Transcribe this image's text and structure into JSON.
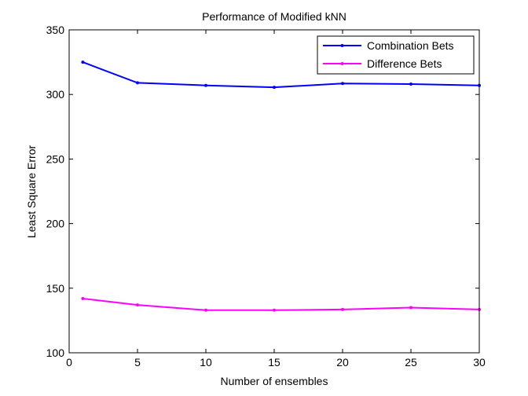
{
  "chart_data": {
    "type": "line",
    "title": "Performance of Modified kNN",
    "xlabel": "Number of ensembles",
    "ylabel": "Least Square Error",
    "xlim": [
      0,
      30
    ],
    "ylim": [
      100,
      350
    ],
    "xticks": [
      0,
      5,
      10,
      15,
      20,
      25,
      30
    ],
    "yticks": [
      100,
      150,
      200,
      250,
      300,
      350
    ],
    "grid": false,
    "legend_position": "top-right",
    "x": [
      1,
      5,
      10,
      15,
      20,
      25,
      30
    ],
    "series": [
      {
        "name": "Combination Bets",
        "color": "#0000ff",
        "marker": "point",
        "values": [
          325,
          309,
          307,
          305.5,
          308.5,
          308,
          307
        ]
      },
      {
        "name": "Difference Bets",
        "color": "#ff00ff",
        "marker": "point",
        "values": [
          142,
          137,
          133,
          133,
          133.5,
          135,
          133.5
        ]
      }
    ]
  }
}
